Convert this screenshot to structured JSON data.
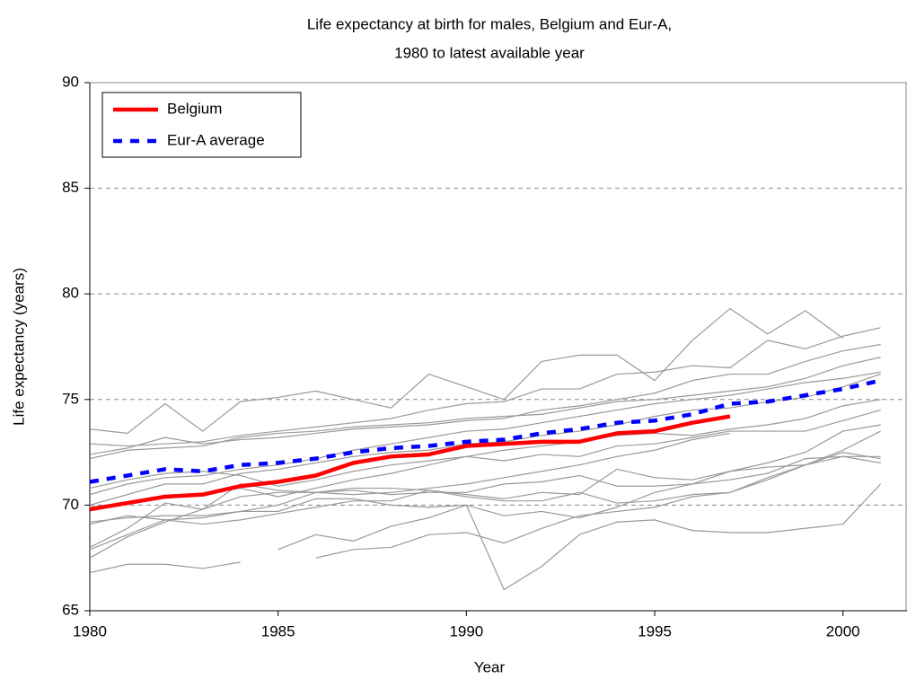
{
  "chart_data": {
    "type": "line",
    "title": [
      "Life expectancy at birth for males, Belgium and Eur-A,",
      "1980 to latest available year"
    ],
    "x_label": "Year",
    "y_label": "Life expectancy (years)",
    "x": [
      1980,
      1981,
      1982,
      1983,
      1984,
      1985,
      1986,
      1987,
      1988,
      1989,
      1990,
      1991,
      1992,
      1993,
      1994,
      1995,
      1996,
      1997,
      1998,
      1999,
      2000,
      2001
    ],
    "xlim": [
      1980,
      2001.7
    ],
    "xticks": [
      1980,
      1985,
      1990,
      1995,
      2000
    ],
    "ylim": [
      65,
      90
    ],
    "yticks": [
      65,
      70,
      75,
      80,
      85,
      90
    ],
    "grid": true,
    "legend": "top-left",
    "series": [
      {
        "color": "#999999",
        "values": [
          73.6,
          73.4,
          74.8,
          73.5,
          74.9,
          75.1,
          75.4,
          75.0,
          74.6,
          76.2,
          75.6,
          75.0,
          76.8,
          77.1,
          77.1,
          75.9,
          77.8,
          79.3,
          78.1,
          79.2,
          77.9,
          null
        ]
      },
      {
        "color": "#999999",
        "values": [
          72.9,
          72.8,
          72.9,
          73.0,
          73.3,
          73.5,
          73.7,
          73.9,
          74.1,
          74.5,
          74.8,
          74.9,
          75.5,
          75.5,
          76.2,
          76.3,
          76.6,
          76.5,
          77.8,
          77.4,
          78.0,
          78.4
        ]
      },
      {
        "color": "#999999",
        "values": [
          72.4,
          72.7,
          73.2,
          72.9,
          73.1,
          73.2,
          73.4,
          73.6,
          73.7,
          73.8,
          74.0,
          74.1,
          74.5,
          74.7,
          75.0,
          75.3,
          75.9,
          76.2,
          76.2,
          76.8,
          77.3,
          77.6
        ]
      },
      {
        "color": "#999999",
        "values": [
          72.2,
          72.6,
          72.7,
          72.8,
          73.2,
          73.4,
          73.5,
          73.7,
          73.8,
          73.9,
          74.1,
          74.2,
          74.3,
          74.6,
          74.9,
          75.0,
          75.2,
          75.4,
          75.6,
          76.0,
          76.6,
          77.0
        ]
      },
      {
        "color": "#999999",
        "values": [
          70.5,
          71.0,
          71.3,
          71.4,
          71.7,
          71.9,
          72.2,
          72.6,
          72.9,
          73.2,
          73.5,
          73.6,
          73.9,
          74.2,
          74.5,
          74.8,
          75.0,
          75.2,
          75.5,
          75.8,
          76.0,
          76.3
        ]
      },
      {
        "color": "#999999",
        "values": [
          70.0,
          70.5,
          71.0,
          71.0,
          71.5,
          71.7,
          72.0,
          72.3,
          72.5,
          72.6,
          72.9,
          73.0,
          73.3,
          73.5,
          73.8,
          74.2,
          74.5,
          74.6,
          74.9,
          75.1,
          75.6,
          76.2
        ]
      },
      {
        "color": "#999999",
        "values": [
          70.8,
          71.2,
          71.5,
          71.6,
          71.4,
          70.9,
          71.2,
          71.6,
          71.9,
          72.1,
          72.3,
          72.6,
          72.8,
          73.0,
          73.3,
          73.4,
          73.3,
          73.6,
          73.8,
          74.1,
          74.7,
          75.0
        ]
      },
      {
        "color": "#999999",
        "values": [
          69.9,
          70.1,
          70.4,
          70.5,
          70.8,
          70.4,
          70.8,
          71.2,
          71.5,
          71.9,
          72.3,
          72.1,
          72.4,
          72.3,
          72.8,
          72.9,
          73.2,
          73.5,
          73.5,
          73.5,
          74.0,
          74.5
        ]
      },
      {
        "color": "#999999",
        "values": [
          68.0,
          68.9,
          70.1,
          69.8,
          71.0,
          70.7,
          70.6,
          70.5,
          70.6,
          70.8,
          71.0,
          71.3,
          71.6,
          71.9,
          72.3,
          72.6,
          73.1,
          73.4,
          null,
          null,
          null,
          null
        ]
      },
      {
        "color": "#999999",
        "values": [
          67.5,
          68.5,
          69.2,
          69.8,
          70.4,
          70.6,
          70.6,
          70.8,
          70.8,
          70.7,
          70.5,
          70.3,
          70.6,
          70.5,
          71.7,
          71.3,
          71.2,
          71.6,
          71.8,
          71.9,
          72.6,
          73.5
        ]
      },
      {
        "color": "#999999",
        "values": [
          69.2,
          69.4,
          69.5,
          69.5,
          69.7,
          70.0,
          70.6,
          70.7,
          70.5,
          70.6,
          70.6,
          71.0,
          71.1,
          71.4,
          70.9,
          70.9,
          71.0,
          71.2,
          71.5,
          72.2,
          72.3,
          72.3
        ]
      },
      {
        "color": "#999999",
        "values": [
          67.9,
          68.6,
          69.3,
          69.1,
          69.3,
          69.6,
          69.9,
          70.2,
          70.2,
          70.7,
          70.4,
          70.2,
          70.2,
          70.6,
          70.1,
          70.2,
          70.5,
          70.6,
          71.3,
          71.9,
          72.5,
          72.2
        ]
      },
      {
        "color": "#999999",
        "values": [
          null,
          null,
          null,
          null,
          null,
          67.9,
          68.6,
          68.3,
          69.0,
          69.4,
          70.0,
          69.5,
          69.7,
          69.4,
          69.9,
          70.6,
          71.0,
          71.6,
          72.0,
          72.5,
          73.5,
          73.8
        ]
      },
      {
        "color": "#999999",
        "values": [
          69.1,
          69.5,
          69.3,
          69.4,
          69.7,
          69.7,
          70.3,
          70.3,
          70.0,
          69.9,
          70.0,
          66.0,
          67.1,
          68.6,
          69.2,
          69.3,
          68.8,
          68.7,
          68.7,
          68.9,
          69.1,
          71.0
        ]
      },
      {
        "color": "#999999",
        "values": [
          66.8,
          67.2,
          67.2,
          67.0,
          67.3,
          null,
          67.5,
          67.9,
          68.0,
          68.6,
          68.7,
          68.2,
          68.9,
          69.5,
          69.7,
          69.9,
          70.4,
          70.6,
          71.2,
          71.9,
          72.3,
          72.0
        ]
      },
      {
        "name": "Belgium",
        "color": "#ff0000",
        "dash": false,
        "values": [
          69.8,
          70.1,
          70.4,
          70.5,
          70.9,
          71.1,
          71.4,
          72.0,
          72.3,
          72.4,
          72.8,
          72.9,
          73.0,
          73.0,
          73.4,
          73.5,
          73.9,
          74.2,
          null,
          null,
          null,
          null
        ]
      },
      {
        "name": "Eur-A average",
        "color": "#0000ff",
        "dash": true,
        "values": [
          71.1,
          71.4,
          71.7,
          71.6,
          71.9,
          72.0,
          72.2,
          72.5,
          72.7,
          72.8,
          73.0,
          73.1,
          73.4,
          73.6,
          73.9,
          74.0,
          74.3,
          74.8,
          74.9,
          75.2,
          75.5,
          75.9
        ]
      }
    ]
  }
}
